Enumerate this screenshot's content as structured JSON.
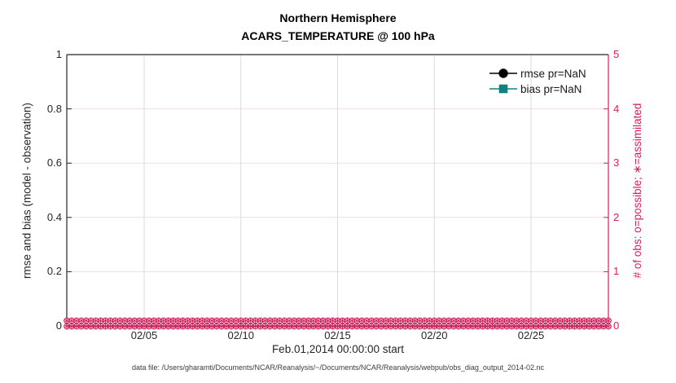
{
  "title": {
    "line1": "Northern Hemisphere",
    "line2": "ACARS_TEMPERATURE @ 100 hPa"
  },
  "axes": {
    "left": {
      "label": "rmse and bias (model - observation)",
      "ticks": [
        "0",
        "0.2",
        "0.4",
        "0.6",
        "0.8",
        "1"
      ],
      "range": [
        0,
        1
      ],
      "color": "#262626"
    },
    "right": {
      "label": "# of obs: o=possible; ∗=assimilated",
      "ticks": [
        "0",
        "1",
        "2",
        "3",
        "4",
        "5"
      ],
      "range": [
        0,
        5
      ],
      "color": "#d91e5c"
    },
    "x": {
      "label": "Feb.01,2014 00:00:00 start",
      "ticks": [
        "02/05",
        "02/10",
        "02/15",
        "02/20",
        "02/25"
      ],
      "tick_days": [
        4,
        9,
        14,
        19,
        24
      ],
      "range_days": [
        0,
        28
      ]
    }
  },
  "legend": [
    {
      "label": "rmse pr=NaN",
      "marker": "circle",
      "color": "#000000"
    },
    {
      "label": "bias pr=NaN",
      "marker": "square",
      "color": "#108080"
    }
  ],
  "footer": {
    "text": "data file: /Users/gharamti/Documents/NCAR/Reanalysis/~/Documents/NCAR/Reanalysis/webpub/obs_diag_output_2014-02.nc"
  },
  "style_colors": {
    "grid_vertical": "#dbdbdb",
    "grid_horizontal_pink": "#f7dbe7",
    "spine_dark": "#262626",
    "spine_right": "#d91e5c",
    "obs_marker": "#d91e5c"
  },
  "chart_data": {
    "type": "line",
    "title": "Northern Hemisphere",
    "subtitle": "ACARS_TEMPERATURE @ 100 hPa",
    "xlabel": "Feb.01,2014 00:00:00 start",
    "ylabel_left": "rmse and bias (model - observation)",
    "ylabel_right": "# of obs: o=possible; ∗=assimilated",
    "xlim_days_from_start": [
      0,
      28
    ],
    "x_tick_labels": [
      "02/05",
      "02/10",
      "02/15",
      "02/20",
      "02/25"
    ],
    "x_tick_days": [
      4,
      9,
      14,
      19,
      24
    ],
    "ylim_left": [
      0,
      1
    ],
    "ylim_right": [
      0,
      5
    ],
    "grid": true,
    "legend_position": "top-right inside, no box",
    "series": [
      {
        "name": "rmse pr=NaN",
        "axis": "left",
        "color": "#000000",
        "marker": "filled-circle",
        "values": "all NaN - no curve drawn"
      },
      {
        "name": "bias pr=NaN",
        "axis": "left",
        "color": "#108080",
        "marker": "filled-square",
        "values": "all NaN - no curve drawn"
      }
    ],
    "obs_counts": {
      "axis": "right",
      "color": "#d91e5c",
      "n_points": 113,
      "interval_hours": 6,
      "start": "Feb.01,2014 00:00:00",
      "possible_marker": "o",
      "possible_values": "0 at every time step",
      "assimilated_marker": "∗",
      "assimilated_values": "0 at every time step",
      "appearance": "dense band of overlapping magenta o and ∗ markers along y=0 across full x-range"
    }
  }
}
